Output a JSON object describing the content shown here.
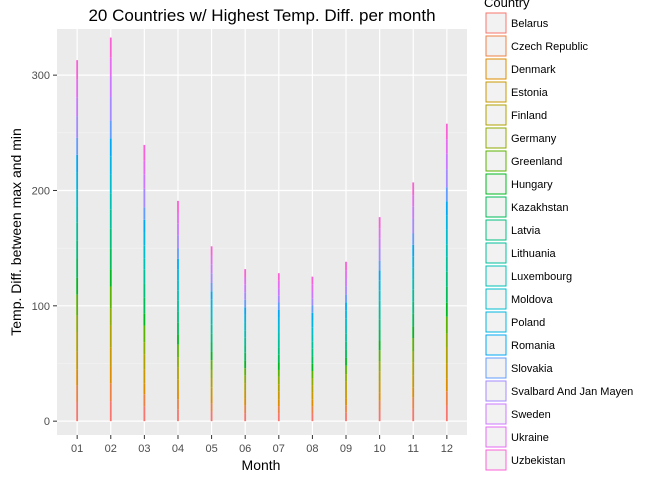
{
  "chart_data": {
    "type": "bar",
    "title": "20 Countries w/ Highest Temp. Diff. per month",
    "xlabel": "Month",
    "ylabel": "Temp. Diff. between max and min",
    "categories": [
      "01",
      "02",
      "03",
      "04",
      "05",
      "06",
      "07",
      "08",
      "09",
      "10",
      "11",
      "12"
    ],
    "y_ticks": [
      0,
      100,
      200,
      300
    ],
    "ylim": [
      -12,
      340
    ],
    "stacked": true,
    "grid": true,
    "legend_position": "right",
    "legend_title": "Country",
    "series": [
      {
        "name": "Belarus",
        "color": "#F8766D",
        "values": [
          16.2,
          17.4,
          12.6,
          9.9,
          8.0,
          7.0,
          6.7,
          6.6,
          7.3,
          9.2,
          10.6,
          13.6
        ]
      },
      {
        "name": "Czech Republic",
        "color": "#EE8044",
        "values": [
          14.8,
          15.4,
          10.8,
          9.0,
          7.2,
          6.5,
          6.4,
          6.2,
          6.6,
          8.4,
          9.8,
          12.3
        ]
      },
      {
        "name": "Denmark",
        "color": "#DE8C00",
        "values": [
          13.5,
          14.2,
          9.5,
          8.1,
          6.6,
          6.1,
          6.0,
          5.8,
          6.1,
          7.6,
          9.0,
          11.0
        ]
      },
      {
        "name": "Estonia",
        "color": "#C99800",
        "values": [
          15.8,
          17.0,
          12.0,
          9.4,
          7.6,
          6.6,
          6.5,
          6.3,
          7.0,
          8.8,
          10.3,
          13.0
        ]
      },
      {
        "name": "Finland",
        "color": "#B0A100",
        "values": [
          17.0,
          18.6,
          13.2,
          10.2,
          8.0,
          6.8,
          6.5,
          6.4,
          7.3,
          9.4,
          11.0,
          14.0
        ]
      },
      {
        "name": "Germany",
        "color": "#8FAA00",
        "values": [
          14.2,
          14.9,
          10.3,
          8.7,
          7.0,
          6.4,
          6.3,
          6.1,
          6.5,
          8.2,
          9.6,
          11.8
        ]
      },
      {
        "name": "Greenland",
        "color": "#5BB300",
        "values": [
          18.1,
          19.2,
          14.5,
          11.0,
          8.4,
          6.5,
          6.0,
          6.1,
          7.2,
          9.8,
          11.8,
          14.8
        ]
      },
      {
        "name": "Hungary",
        "color": "#00B81F",
        "values": [
          14.6,
          15.1,
          10.6,
          8.9,
          7.2,
          6.6,
          6.5,
          6.3,
          6.8,
          8.5,
          9.9,
          12.1
        ]
      },
      {
        "name": "Kazakhstan",
        "color": "#00BC59",
        "values": [
          16.8,
          18.0,
          13.6,
          10.6,
          8.2,
          6.8,
          6.7,
          6.6,
          7.4,
          9.6,
          11.2,
          13.8
        ]
      },
      {
        "name": "Latvia",
        "color": "#00BF7D",
        "values": [
          15.9,
          17.1,
          12.2,
          9.6,
          7.7,
          6.7,
          6.6,
          6.4,
          7.1,
          8.9,
          10.4,
          13.1
        ]
      },
      {
        "name": "Lithuania",
        "color": "#00C09B",
        "values": [
          15.6,
          16.8,
          12.0,
          9.5,
          7.7,
          6.7,
          6.6,
          6.4,
          7.0,
          8.8,
          10.3,
          12.9
        ]
      },
      {
        "name": "Luxembourg",
        "color": "#00C0B5",
        "values": [
          13.2,
          14.0,
          9.6,
          8.2,
          6.7,
          6.2,
          6.1,
          5.9,
          6.2,
          7.7,
          9.0,
          11.0
        ]
      },
      {
        "name": "Moldova",
        "color": "#00BDCD",
        "values": [
          15.0,
          15.8,
          11.2,
          9.2,
          7.4,
          6.6,
          6.5,
          6.3,
          6.8,
          8.6,
          10.0,
          12.4
        ]
      },
      {
        "name": "Poland",
        "color": "#00B5E2",
        "values": [
          15.3,
          16.2,
          11.5,
          9.3,
          7.5,
          6.6,
          6.5,
          6.3,
          6.9,
          8.7,
          10.1,
          12.6
        ]
      },
      {
        "name": "Romania",
        "color": "#00A9F4",
        "values": [
          14.9,
          15.6,
          11.0,
          9.1,
          7.3,
          6.6,
          6.5,
          6.3,
          6.8,
          8.5,
          9.9,
          12.3
        ]
      },
      {
        "name": "Slovakia",
        "color": "#619CFF",
        "values": [
          14.7,
          15.3,
          10.8,
          9.0,
          7.3,
          6.6,
          6.5,
          6.3,
          6.7,
          8.5,
          9.8,
          12.2
        ]
      },
      {
        "name": "Svalbard And Jan Mayen",
        "color": "#A58AFF",
        "values": [
          18.9,
          20.4,
          16.0,
          11.6,
          8.5,
          6.4,
          5.8,
          5.9,
          7.4,
          10.5,
          12.6,
          15.6
        ]
      },
      {
        "name": "Sweden",
        "color": "#CC77FF",
        "values": [
          16.4,
          17.8,
          12.6,
          9.8,
          7.8,
          6.6,
          6.4,
          6.2,
          7.0,
          9.0,
          10.6,
          13.4
        ]
      },
      {
        "name": "Ukraine",
        "color": "#E76BF3",
        "values": [
          15.4,
          16.3,
          11.7,
          9.4,
          7.5,
          6.7,
          6.6,
          6.4,
          6.9,
          8.7,
          10.1,
          12.6
        ]
      },
      {
        "name": "Uzbekistan",
        "color": "#FB61D7",
        "values": [
          16.7,
          17.5,
          13.8,
          10.5,
          8.0,
          6.8,
          6.6,
          6.5,
          7.2,
          9.5,
          11.0,
          13.4
        ]
      }
    ]
  }
}
